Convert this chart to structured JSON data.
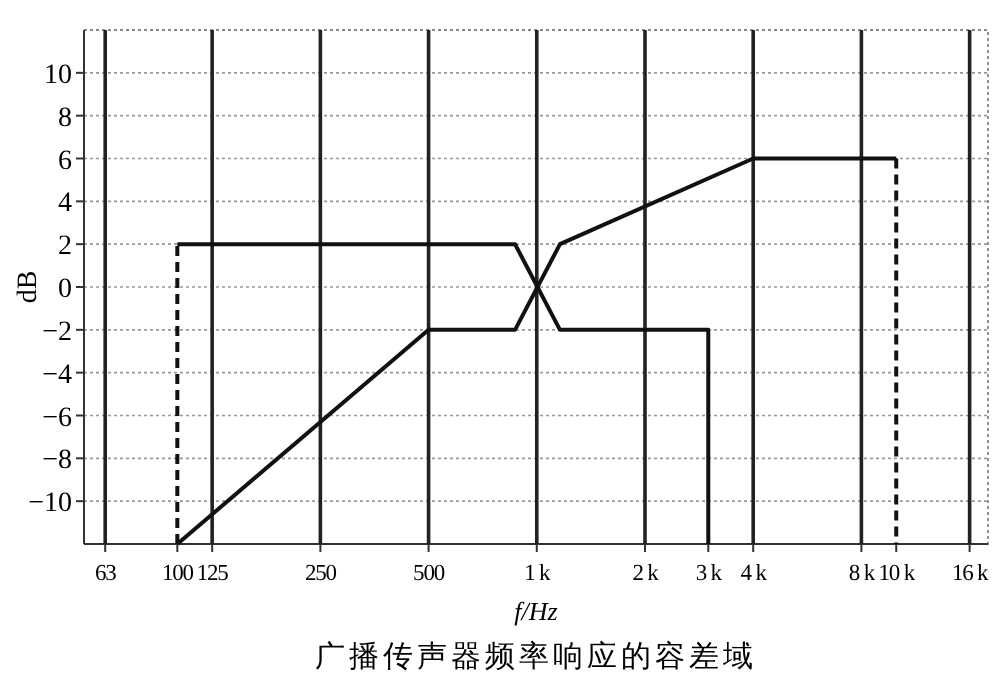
{
  "chart_data": {
    "type": "line",
    "xlabel": "f/Hz",
    "ylabel": "dB",
    "annotations": [
      "广播传声器频率响应的容差域"
    ],
    "log": "x",
    "xlim": [
      55,
      18000
    ],
    "ylim": [
      -12,
      12
    ],
    "xticks": [
      {
        "value": 63,
        "label": "63"
      },
      {
        "value": 100,
        "label": "100"
      },
      {
        "value": 125,
        "label": "125"
      },
      {
        "value": 250,
        "label": "250"
      },
      {
        "value": 500,
        "label": "500"
      },
      {
        "value": 1000,
        "label": "1 k"
      },
      {
        "value": 2000,
        "label": "2 k"
      },
      {
        "value": 3000,
        "label": "3 k"
      },
      {
        "value": 4000,
        "label": "4 k"
      },
      {
        "value": 8000,
        "label": "8 k"
      },
      {
        "value": 10000,
        "label": "10 k"
      },
      {
        "value": 16000,
        "label": "16 k"
      }
    ],
    "yticks": [
      {
        "value": -10,
        "label": "−10"
      },
      {
        "value": -8,
        "label": "−8"
      },
      {
        "value": -6,
        "label": "−6"
      },
      {
        "value": -4,
        "label": "−4"
      },
      {
        "value": -2,
        "label": "−2"
      },
      0,
      2,
      4,
      6,
      8,
      10
    ],
    "grid": "y",
    "line_style": "solid",
    "marker": "none",
    "ref_lines": [
      {
        "axis": "x",
        "value": 63,
        "color": "#222222"
      },
      {
        "axis": "x",
        "value": 125,
        "color": "#222222"
      },
      {
        "axis": "x",
        "value": 250,
        "color": "#222222"
      },
      {
        "axis": "x",
        "value": 500,
        "color": "#222222"
      },
      {
        "axis": "x",
        "value": 1000,
        "color": "#222222"
      },
      {
        "axis": "x",
        "value": 2000,
        "color": "#222222"
      },
      {
        "axis": "x",
        "value": 4000,
        "color": "#222222"
      },
      {
        "axis": "x",
        "value": 8000,
        "color": "#222222"
      },
      {
        "axis": "x",
        "value": 16000,
        "color": "#222222"
      }
    ],
    "series": [
      {
        "color": "#111111",
        "x": [
          100,
          870,
          1160,
          3000,
          3000
        ],
        "values": [
          2,
          2,
          -2,
          -2,
          -12
        ]
      },
      {
        "color": "#111111",
        "line_style": "dashed",
        "x": [
          100,
          100
        ],
        "values": [
          -12,
          2
        ]
      },
      {
        "color": "#111111",
        "x": [
          100,
          500,
          870,
          1160,
          4000,
          10000
        ],
        "values": [
          -12,
          -2,
          -2,
          2,
          6,
          6
        ]
      },
      {
        "color": "#111111",
        "line_style": "dashed",
        "x": [
          10000,
          10000
        ],
        "values": [
          6,
          -12
        ]
      }
    ]
  }
}
